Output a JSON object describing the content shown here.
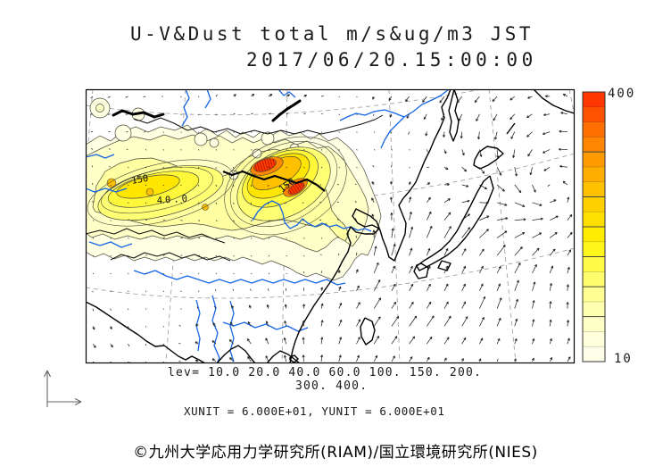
{
  "title": {
    "line1": "U-V&Dust total m/s&ug/m3 JST",
    "line2": "2017/06/20.15:00:00"
  },
  "annotations": {
    "lev_line1": "lev= 10.0 20.0 40.0 60.0 100. 150. 200.",
    "lev_line2": "300. 400.",
    "units_line": "XUNIT = 6.000E+01, YUNIT = 6.000E+01"
  },
  "colorbar": {
    "top_label": "400",
    "bottom_label": "10",
    "segments_top_to_bottom": [
      "#ff3600",
      "#ff5200",
      "#ff6f00",
      "#ff8600",
      "#ff9b00",
      "#ffae00",
      "#ffc000",
      "#ffd000",
      "#ffdf00",
      "#ffec00",
      "#fff71c",
      "#fffb47",
      "#fffd6e",
      "#fffe92",
      "#ffffb0",
      "#ffffc8",
      "#ffffdb",
      "#ffffe9"
    ]
  },
  "map": {
    "contour_labels": [
      "150",
      "40.0",
      "150"
    ],
    "level_colors": {
      "l10": "#ffffe4",
      "l20": "#ffffc8",
      "l40": "#ffffa2",
      "l60": "#ffff74",
      "l100": "#fff83a",
      "l150": "#ffe600",
      "l200": "#ffc000",
      "l300": "#ff8600",
      "l400": "#ff3c00"
    },
    "line_colors": {
      "coast": "#000000",
      "river": "#1565e8",
      "contour": "#4a4a3a",
      "graticule": "#999999",
      "vector": "#222222"
    }
  },
  "footer": {
    "copyright": "©九州大学応用力学研究所(RIAM)/国立環境研究所(NIES)"
  },
  "chart_data": {
    "type": "heatmap",
    "subtype": "filled-contour map with wind vector field",
    "title": "U-V&Dust total m/s&ug/m3 JST",
    "timestamp": "2017/06/20.15:00:00",
    "variables": {
      "vectors": "U-V wind (m/s)",
      "shading": "Dust total (ug/m3)",
      "timezone": "JST"
    },
    "contour_levels": [
      10.0,
      20.0,
      40.0,
      60.0,
      100,
      150,
      200,
      300,
      400
    ],
    "colorbar": {
      "min": 10,
      "max": 400,
      "orientation": "vertical",
      "position": "right"
    },
    "xunit": "6.000E+01",
    "yunit": "6.000E+01",
    "contour_labels_on_map": [
      "150",
      "40.0",
      "150"
    ],
    "features": [
      {
        "name": "west dust plume",
        "peak_level": 200
      },
      {
        "name": "east dust plume",
        "peak_level": 400
      },
      {
        "name": "cyclonic vector swirl east of Japan"
      },
      {
        "name": "southerly vector jet over East China Sea"
      }
    ],
    "legend_position": "right",
    "grid": "dashed graticule"
  }
}
